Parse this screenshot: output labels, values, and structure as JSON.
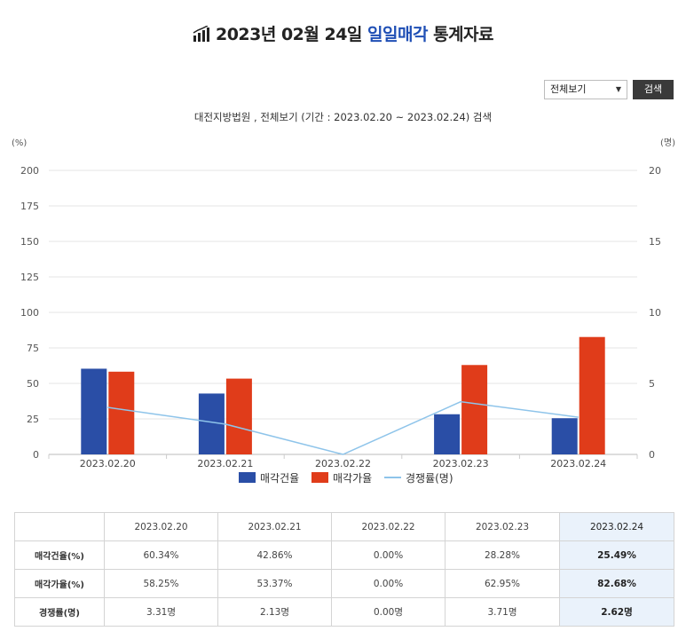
{
  "header": {
    "title_prefix": "2023년 02월 24일 ",
    "title_highlight": "일일매각",
    "title_suffix": " 통계자료",
    "icon": "bar-chart-up-icon"
  },
  "controls": {
    "select_value": "전체보기",
    "search_label": "검색"
  },
  "subtitle": "대전지방법원 , 전체보기 (기간 : 2023.02.20 ~ 2023.02.24) 검색",
  "chart_data": {
    "type": "bar",
    "categories": [
      "2023.02.20",
      "2023.02.21",
      "2023.02.22",
      "2023.02.23",
      "2023.02.24"
    ],
    "series": [
      {
        "name": "매각건율",
        "type": "bar",
        "axis": "left",
        "color": "#2a4ea6",
        "values": [
          60.34,
          42.86,
          0.0,
          28.28,
          25.49
        ]
      },
      {
        "name": "매각가율",
        "type": "bar",
        "axis": "left",
        "color": "#e03c1a",
        "values": [
          58.25,
          53.37,
          0.0,
          62.95,
          82.68
        ]
      },
      {
        "name": "경쟁률(명)",
        "type": "line",
        "axis": "right",
        "color": "#8ec4ea",
        "values": [
          3.31,
          2.13,
          0.0,
          3.71,
          2.62
        ]
      }
    ],
    "left_axis": {
      "unit": "(%)",
      "min": 0,
      "max": 200,
      "ticks": [
        0,
        25,
        50,
        75,
        100,
        125,
        150,
        175,
        200
      ]
    },
    "right_axis": {
      "unit": "(명)",
      "min": 0,
      "max": 20,
      "ticks": [
        0,
        5,
        10,
        15,
        20
      ]
    },
    "grid": true,
    "legend_position": "bottom"
  },
  "table": {
    "headers": [
      "",
      "2023.02.20",
      "2023.02.21",
      "2023.02.22",
      "2023.02.23",
      "2023.02.24"
    ],
    "rows": [
      {
        "label": "매각건율(%)",
        "cells": [
          "60.34%",
          "42.86%",
          "0.00%",
          "28.28%",
          "25.49%"
        ]
      },
      {
        "label": "매각가율(%)",
        "cells": [
          "58.25%",
          "53.37%",
          "0.00%",
          "62.95%",
          "82.68%"
        ]
      },
      {
        "label": "경쟁률(명)",
        "cells": [
          "3.31명",
          "2.13명",
          "0.00명",
          "3.71명",
          "2.62명"
        ]
      }
    ]
  }
}
